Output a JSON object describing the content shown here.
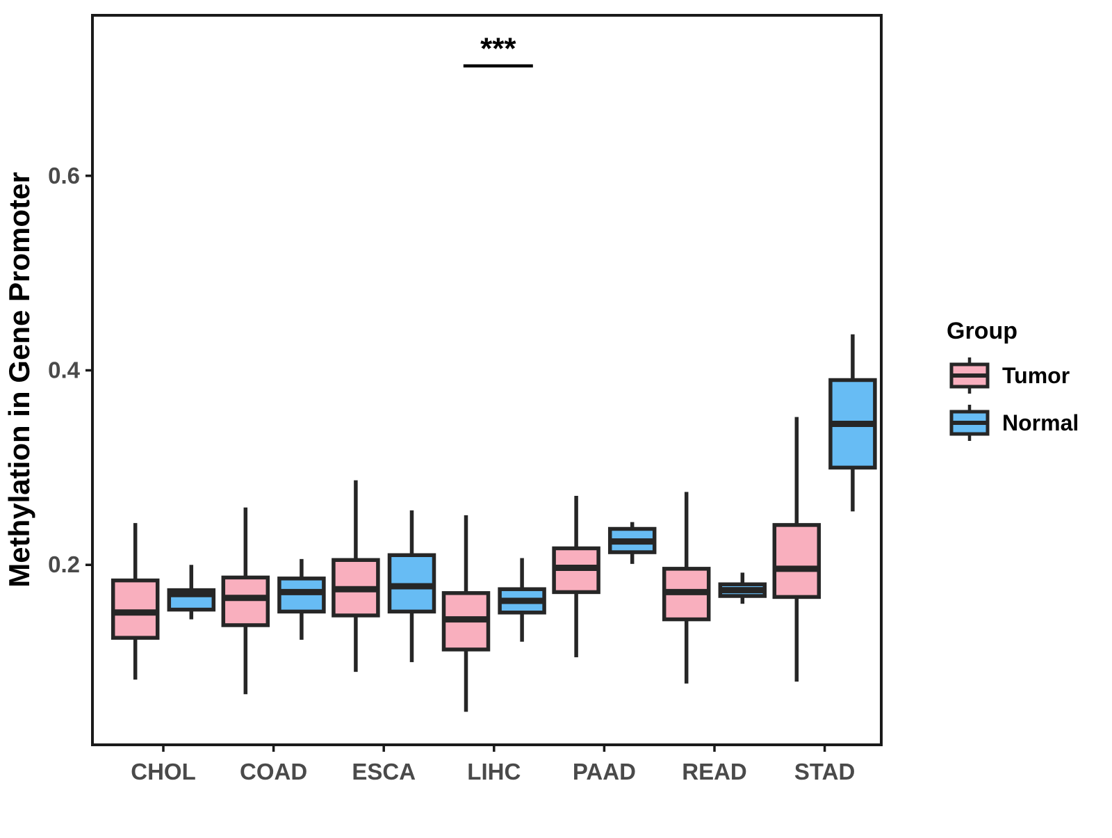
{
  "chart_data": {
    "type": "boxplot",
    "title": "",
    "xlabel": "",
    "ylabel": "Methylation in Gene Promoter",
    "categories": [
      "CHOL",
      "COAD",
      "ESCA",
      "LIHC",
      "PAAD",
      "READ",
      "STAD"
    ],
    "y_ticks": [
      "0.2",
      "0.4",
      "0.6"
    ],
    "y_tick_values": [
      0.2,
      0.4,
      0.6
    ],
    "y_domain": [
      0.015,
      0.765
    ],
    "grid": "off",
    "legend": {
      "title": "Group",
      "position": "right",
      "entries": [
        {
          "label": "Tumor",
          "color": "#F9AFBE"
        },
        {
          "label": "Normal",
          "color": "#67BCF4"
        }
      ]
    },
    "series": [
      {
        "name": "Tumor",
        "color": "#F9AFBE",
        "boxes": [
          {
            "category": "CHOL",
            "min": 0.082,
            "q1": 0.125,
            "median": 0.151,
            "q3": 0.184,
            "max": 0.243
          },
          {
            "category": "COAD",
            "min": 0.067,
            "q1": 0.138,
            "median": 0.166,
            "q3": 0.187,
            "max": 0.259
          },
          {
            "category": "ESCA",
            "min": 0.09,
            "q1": 0.148,
            "median": 0.175,
            "q3": 0.205,
            "max": 0.287
          },
          {
            "category": "LIHC",
            "min": 0.049,
            "q1": 0.113,
            "median": 0.144,
            "q3": 0.171,
            "max": 0.251
          },
          {
            "category": "PAAD",
            "min": 0.105,
            "q1": 0.172,
            "median": 0.197,
            "q3": 0.217,
            "max": 0.271
          },
          {
            "category": "READ",
            "min": 0.078,
            "q1": 0.144,
            "median": 0.172,
            "q3": 0.196,
            "max": 0.275
          },
          {
            "category": "STAD",
            "min": 0.08,
            "q1": 0.167,
            "median": 0.196,
            "q3": 0.241,
            "max": 0.352
          }
        ]
      },
      {
        "name": "Normal",
        "color": "#67BCF4",
        "boxes": [
          {
            "category": "CHOL",
            "min": 0.144,
            "q1": 0.154,
            "median": 0.17,
            "q3": 0.174,
            "max": 0.2
          },
          {
            "category": "COAD",
            "min": 0.123,
            "q1": 0.152,
            "median": 0.172,
            "q3": 0.186,
            "max": 0.206
          },
          {
            "category": "ESCA",
            "min": 0.1,
            "q1": 0.152,
            "median": 0.178,
            "q3": 0.21,
            "max": 0.256
          },
          {
            "category": "LIHC",
            "min": 0.121,
            "q1": 0.151,
            "median": 0.163,
            "q3": 0.175,
            "max": 0.207
          },
          {
            "category": "PAAD",
            "min": 0.201,
            "q1": 0.213,
            "median": 0.224,
            "q3": 0.237,
            "max": 0.244
          },
          {
            "category": "READ",
            "min": 0.16,
            "q1": 0.168,
            "median": 0.174,
            "q3": 0.18,
            "max": 0.192
          },
          {
            "category": "STAD",
            "min": 0.255,
            "q1": 0.3,
            "median": 0.345,
            "q3": 0.39,
            "max": 0.437
          }
        ]
      }
    ],
    "annotation": {
      "label": "***",
      "category": "LIHC",
      "bar_y_value": 0.713,
      "text_y_value": 0.735
    }
  },
  "style": {
    "box_border_color": "#262626",
    "axis_color": "#1A1A1A",
    "tick_label_color": "#4A4A4A",
    "background_color": "#FFFFFF"
  }
}
